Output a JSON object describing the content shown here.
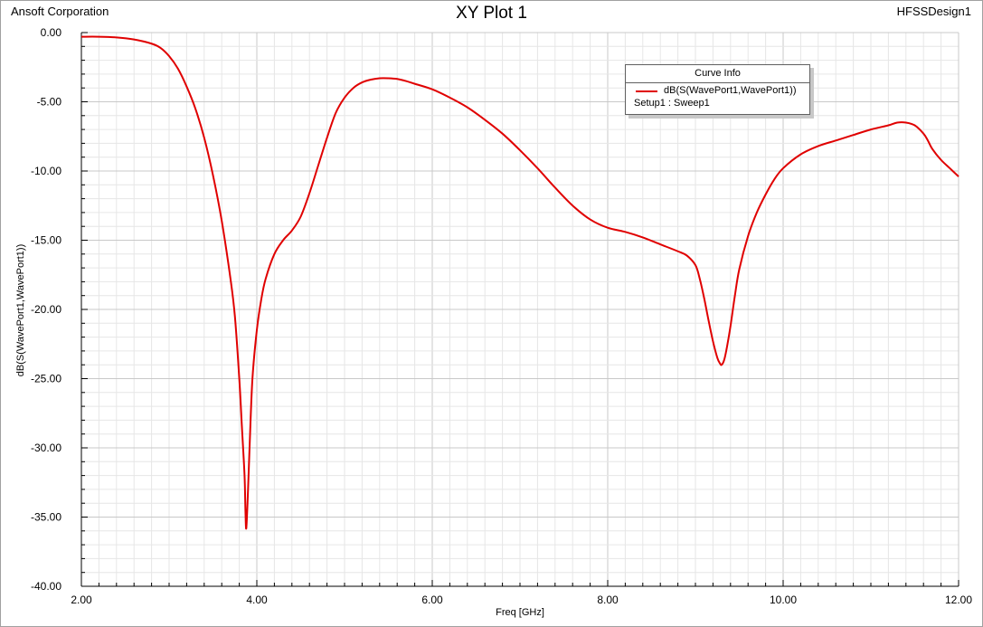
{
  "header": {
    "company": "Ansoft Corporation",
    "title": "XY Plot 1",
    "design": "HFSSDesign1"
  },
  "legend": {
    "heading": "Curve Info",
    "curve_name": "dB(S(WavePort1,WavePort1))",
    "setup": "Setup1 : Sweep1"
  },
  "colors": {
    "curve": "#e00000",
    "grid_major": "#c8c8c8",
    "grid_minor": "#e6e6e6",
    "axis": "#000000"
  },
  "chart_data": {
    "type": "line",
    "xlabel": "Freq [GHz]",
    "ylabel": "dB(S(WavePort1,WavePort1))",
    "xlim": [
      2.0,
      12.0
    ],
    "ylim": [
      -40.0,
      0.0
    ],
    "xticks": [
      2.0,
      4.0,
      6.0,
      8.0,
      10.0,
      12.0
    ],
    "xtick_labels": [
      "2.00",
      "4.00",
      "6.00",
      "8.00",
      "10.00",
      "12.00"
    ],
    "yticks": [
      0,
      -5,
      -10,
      -15,
      -20,
      -25,
      -30,
      -35,
      -40
    ],
    "ytick_labels": [
      "0.00",
      "-5.00",
      "-10.00",
      "-15.00",
      "-20.00",
      "-25.00",
      "-30.00",
      "-35.00",
      "-40.00"
    ],
    "grid": true,
    "legend_position": "top-right",
    "series": [
      {
        "name": "dB(S(WavePort1,WavePort1))",
        "x": [
          2.0,
          2.2,
          2.4,
          2.6,
          2.8,
          2.9,
          3.0,
          3.1,
          3.2,
          3.3,
          3.4,
          3.5,
          3.6,
          3.7,
          3.75,
          3.8,
          3.83,
          3.86,
          3.87,
          3.88,
          3.9,
          3.92,
          3.95,
          4.0,
          4.05,
          4.1,
          4.2,
          4.3,
          4.4,
          4.5,
          4.6,
          4.7,
          4.8,
          4.9,
          5.0,
          5.1,
          5.2,
          5.3,
          5.4,
          5.5,
          5.6,
          5.7,
          5.8,
          6.0,
          6.2,
          6.4,
          6.6,
          6.8,
          7.0,
          7.2,
          7.4,
          7.6,
          7.8,
          8.0,
          8.2,
          8.4,
          8.6,
          8.8,
          8.9,
          9.0,
          9.05,
          9.1,
          9.15,
          9.2,
          9.25,
          9.28,
          9.3,
          9.33,
          9.36,
          9.4,
          9.45,
          9.5,
          9.6,
          9.7,
          9.8,
          9.9,
          10.0,
          10.2,
          10.4,
          10.6,
          10.8,
          11.0,
          11.2,
          11.3,
          11.4,
          11.5,
          11.6,
          11.65,
          11.7,
          11.8,
          11.9,
          12.0
        ],
        "y": [
          -0.3,
          -0.3,
          -0.35,
          -0.5,
          -0.8,
          -1.1,
          -1.7,
          -2.6,
          -3.9,
          -5.5,
          -7.6,
          -10.3,
          -13.6,
          -17.8,
          -20.5,
          -25.0,
          -28.5,
          -32.0,
          -34.5,
          -35.8,
          -33.0,
          -29.5,
          -25.0,
          -21.5,
          -19.3,
          -17.8,
          -16.0,
          -15.0,
          -14.3,
          -13.3,
          -11.6,
          -9.6,
          -7.6,
          -5.8,
          -4.7,
          -4.0,
          -3.6,
          -3.4,
          -3.3,
          -3.3,
          -3.35,
          -3.5,
          -3.7,
          -4.1,
          -4.7,
          -5.4,
          -6.3,
          -7.3,
          -8.5,
          -9.8,
          -11.2,
          -12.5,
          -13.5,
          -14.1,
          -14.4,
          -14.8,
          -15.3,
          -15.8,
          -16.1,
          -16.8,
          -17.8,
          -19.2,
          -20.8,
          -22.3,
          -23.5,
          -23.9,
          -24.0,
          -23.6,
          -22.7,
          -21.2,
          -19.0,
          -17.1,
          -14.7,
          -13.0,
          -11.7,
          -10.6,
          -9.8,
          -8.8,
          -8.2,
          -7.8,
          -7.4,
          -7.0,
          -6.7,
          -6.5,
          -6.5,
          -6.7,
          -7.3,
          -7.8,
          -8.4,
          -9.2,
          -9.8,
          -10.4
        ]
      }
    ]
  }
}
